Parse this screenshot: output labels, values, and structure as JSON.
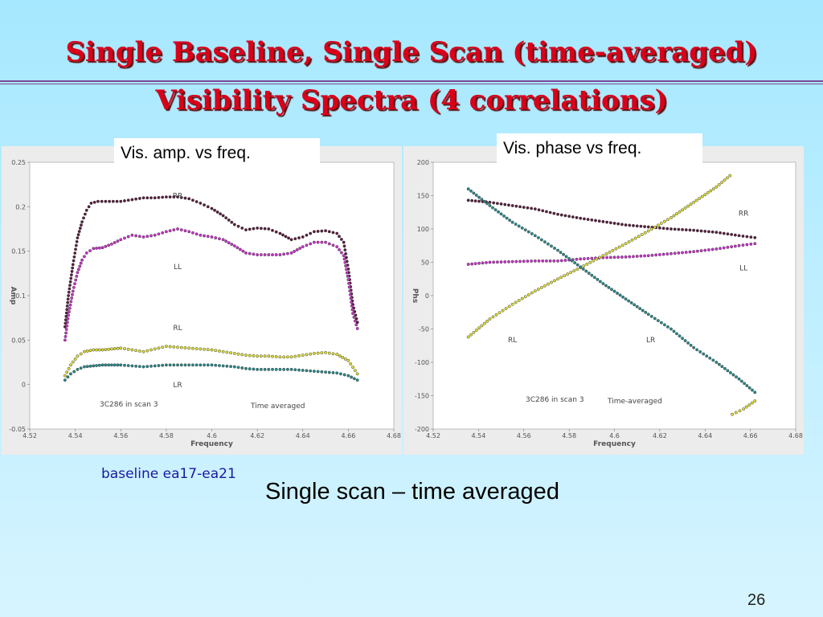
{
  "title_line1": "Single Baseline, Single Scan (time-averaged)",
  "title_line2": "Visibility Spectra (4 correlations)",
  "caption_amp": "Vis. amp. vs freq.",
  "caption_phase": "Vis. phase vs freq.",
  "baseline": "baseline ea17-ea21",
  "subtitle": "Single scan – time averaged",
  "page_number": "26",
  "colors": {
    "title": "#d9001a",
    "RR": "#5a2040",
    "LL": "#cc33cc",
    "RL": "#dddd33",
    "LR": "#2a8a8a"
  },
  "chart_data": [
    {
      "type": "scatter",
      "title": "",
      "xlabel": "Frequency",
      "ylabel": "Amp",
      "xlim": [
        4.52,
        4.68
      ],
      "ylim": [
        -0.05,
        0.25
      ],
      "xticks": [
        "4.52",
        "4.54",
        "4.56",
        "4.58",
        "4.6",
        "4.62",
        "4.64",
        "4.66",
        "4.68"
      ],
      "yticks": [
        "-0.05",
        "0",
        "0.05",
        "0.1",
        "0.15",
        "0.2",
        "0.25"
      ],
      "annotations": [
        "3C286 in scan 3",
        "Time averaged"
      ],
      "series": [
        {
          "name": "RR",
          "color": "#5a2040",
          "label_at": [
            4.585,
            0.21
          ],
          "points": [
            [
              4.5355,
              0.065
            ],
            [
              4.537,
              0.1
            ],
            [
              4.539,
              0.135
            ],
            [
              4.541,
              0.165
            ],
            [
              4.543,
              0.183
            ],
            [
              4.545,
              0.196
            ],
            [
              4.547,
              0.204
            ],
            [
              4.55,
              0.206
            ],
            [
              4.555,
              0.206
            ],
            [
              4.56,
              0.206
            ],
            [
              4.565,
              0.208
            ],
            [
              4.57,
              0.21
            ],
            [
              4.575,
              0.21
            ],
            [
              4.58,
              0.211
            ],
            [
              4.585,
              0.211
            ],
            [
              4.59,
              0.209
            ],
            [
              4.595,
              0.204
            ],
            [
              4.6,
              0.198
            ],
            [
              4.605,
              0.19
            ],
            [
              4.61,
              0.18
            ],
            [
              4.615,
              0.174
            ],
            [
              4.62,
              0.176
            ],
            [
              4.625,
              0.175
            ],
            [
              4.63,
              0.17
            ],
            [
              4.635,
              0.163
            ],
            [
              4.64,
              0.166
            ],
            [
              4.645,
              0.172
            ],
            [
              4.65,
              0.173
            ],
            [
              4.655,
              0.17
            ],
            [
              4.658,
              0.16
            ],
            [
              4.66,
              0.13
            ],
            [
              4.662,
              0.09
            ],
            [
              4.664,
              0.07
            ]
          ]
        },
        {
          "name": "LL",
          "color": "#cc33cc",
          "label_at": [
            4.585,
            0.13
          ],
          "points": [
            [
              4.5355,
              0.05
            ],
            [
              4.537,
              0.078
            ],
            [
              4.539,
              0.105
            ],
            [
              4.541,
              0.126
            ],
            [
              4.543,
              0.14
            ],
            [
              4.545,
              0.148
            ],
            [
              4.548,
              0.153
            ],
            [
              4.552,
              0.154
            ],
            [
              4.556,
              0.158
            ],
            [
              4.56,
              0.163
            ],
            [
              4.565,
              0.168
            ],
            [
              4.57,
              0.166
            ],
            [
              4.575,
              0.168
            ],
            [
              4.58,
              0.172
            ],
            [
              4.585,
              0.175
            ],
            [
              4.59,
              0.172
            ],
            [
              4.595,
              0.168
            ],
            [
              4.6,
              0.166
            ],
            [
              4.605,
              0.163
            ],
            [
              4.61,
              0.156
            ],
            [
              4.615,
              0.148
            ],
            [
              4.62,
              0.146
            ],
            [
              4.625,
              0.146
            ],
            [
              4.63,
              0.146
            ],
            [
              4.635,
              0.148
            ],
            [
              4.64,
              0.155
            ],
            [
              4.645,
              0.16
            ],
            [
              4.65,
              0.16
            ],
            [
              4.655,
              0.155
            ],
            [
              4.658,
              0.145
            ],
            [
              4.66,
              0.118
            ],
            [
              4.662,
              0.08
            ],
            [
              4.664,
              0.063
            ]
          ]
        },
        {
          "name": "RL",
          "color": "#dddd33",
          "label_at": [
            4.585,
            0.061
          ],
          "points": [
            [
              4.5355,
              0.01
            ],
            [
              4.538,
              0.022
            ],
            [
              4.541,
              0.032
            ],
            [
              4.544,
              0.037
            ],
            [
              4.548,
              0.039
            ],
            [
              4.552,
              0.039
            ],
            [
              4.556,
              0.04
            ],
            [
              4.56,
              0.041
            ],
            [
              4.565,
              0.039
            ],
            [
              4.57,
              0.037
            ],
            [
              4.575,
              0.04
            ],
            [
              4.58,
              0.043
            ],
            [
              4.585,
              0.042
            ],
            [
              4.59,
              0.041
            ],
            [
              4.595,
              0.04
            ],
            [
              4.6,
              0.039
            ],
            [
              4.605,
              0.037
            ],
            [
              4.61,
              0.035
            ],
            [
              4.615,
              0.033
            ],
            [
              4.62,
              0.032
            ],
            [
              4.625,
              0.032
            ],
            [
              4.63,
              0.031
            ],
            [
              4.635,
              0.031
            ],
            [
              4.64,
              0.033
            ],
            [
              4.645,
              0.035
            ],
            [
              4.65,
              0.036
            ],
            [
              4.655,
              0.034
            ],
            [
              4.66,
              0.027
            ],
            [
              4.664,
              0.012
            ]
          ]
        },
        {
          "name": "LR",
          "color": "#2a8a8a",
          "label_at": [
            4.585,
            -0.003
          ],
          "points": [
            [
              4.5355,
              0.005
            ],
            [
              4.538,
              0.012
            ],
            [
              4.541,
              0.017
            ],
            [
              4.544,
              0.02
            ],
            [
              4.548,
              0.021
            ],
            [
              4.552,
              0.022
            ],
            [
              4.556,
              0.022
            ],
            [
              4.56,
              0.022
            ],
            [
              4.565,
              0.021
            ],
            [
              4.57,
              0.02
            ],
            [
              4.575,
              0.021
            ],
            [
              4.58,
              0.022
            ],
            [
              4.585,
              0.022
            ],
            [
              4.59,
              0.022
            ],
            [
              4.595,
              0.022
            ],
            [
              4.6,
              0.022
            ],
            [
              4.605,
              0.021
            ],
            [
              4.61,
              0.02
            ],
            [
              4.615,
              0.018
            ],
            [
              4.62,
              0.017
            ],
            [
              4.625,
              0.017
            ],
            [
              4.63,
              0.017
            ],
            [
              4.635,
              0.017
            ],
            [
              4.64,
              0.016
            ],
            [
              4.645,
              0.015
            ],
            [
              4.65,
              0.014
            ],
            [
              4.655,
              0.013
            ],
            [
              4.66,
              0.01
            ],
            [
              4.664,
              0.005
            ]
          ]
        }
      ]
    },
    {
      "type": "scatter",
      "title": "",
      "xlabel": "Frequency",
      "ylabel": "Phs",
      "xlim": [
        4.52,
        4.68
      ],
      "ylim": [
        -200,
        200
      ],
      "xticks": [
        "4.52",
        "4.54",
        "4.56",
        "4.58",
        "4.6",
        "4.62",
        "4.64",
        "4.66",
        "4.68"
      ],
      "yticks": [
        "-200",
        "-150",
        "-100",
        "-50",
        "0",
        "50",
        "100",
        "150",
        "200"
      ],
      "annotations": [
        "3C286 in scan 3",
        "Time-averaged"
      ],
      "series": [
        {
          "name": "RR",
          "color": "#5a2040",
          "label_at": [
            4.657,
            120
          ],
          "points": [
            [
              4.5355,
              143
            ],
            [
              4.545,
              140
            ],
            [
              4.555,
              135
            ],
            [
              4.565,
              130
            ],
            [
              4.575,
              122
            ],
            [
              4.585,
              116
            ],
            [
              4.595,
              111
            ],
            [
              4.605,
              106
            ],
            [
              4.615,
              103
            ],
            [
              4.625,
              100
            ],
            [
              4.635,
              98
            ],
            [
              4.645,
              95
            ],
            [
              4.655,
              90
            ],
            [
              4.662,
              87
            ]
          ]
        },
        {
          "name": "LL",
          "color": "#cc33cc",
          "label_at": [
            4.657,
            38
          ],
          "points": [
            [
              4.5355,
              47
            ],
            [
              4.545,
              50
            ],
            [
              4.555,
              51
            ],
            [
              4.565,
              52
            ],
            [
              4.575,
              52
            ],
            [
              4.585,
              55
            ],
            [
              4.595,
              57
            ],
            [
              4.605,
              58
            ],
            [
              4.615,
              60
            ],
            [
              4.625,
              63
            ],
            [
              4.635,
              66
            ],
            [
              4.645,
              70
            ],
            [
              4.655,
              75
            ],
            [
              4.662,
              78
            ]
          ]
        },
        {
          "name": "RL",
          "color": "#dddd33",
          "label_at": [
            4.555,
            -70
          ],
          "points": [
            [
              4.5355,
              -62
            ],
            [
              4.545,
              -35
            ],
            [
              4.555,
              -13
            ],
            [
              4.565,
              7
            ],
            [
              4.575,
              25
            ],
            [
              4.585,
              42
            ],
            [
              4.595,
              60
            ],
            [
              4.605,
              78
            ],
            [
              4.615,
              97
            ],
            [
              4.625,
              117
            ],
            [
              4.635,
              140
            ],
            [
              4.645,
              163
            ],
            [
              4.651,
              180
            ],
            [
              4.652,
              -178
            ],
            [
              4.657,
              -170
            ],
            [
              4.662,
              -158
            ]
          ]
        },
        {
          "name": "LR",
          "color": "#2a8a8a",
          "label_at": [
            4.616,
            -70
          ],
          "points": [
            [
              4.5355,
              160
            ],
            [
              4.545,
              135
            ],
            [
              4.555,
              110
            ],
            [
              4.565,
              90
            ],
            [
              4.575,
              68
            ],
            [
              4.585,
              43
            ],
            [
              4.595,
              18
            ],
            [
              4.605,
              -5
            ],
            [
              4.615,
              -28
            ],
            [
              4.625,
              -50
            ],
            [
              4.635,
              -78
            ],
            [
              4.645,
              -100
            ],
            [
              4.655,
              -125
            ],
            [
              4.662,
              -145
            ]
          ]
        }
      ]
    }
  ]
}
